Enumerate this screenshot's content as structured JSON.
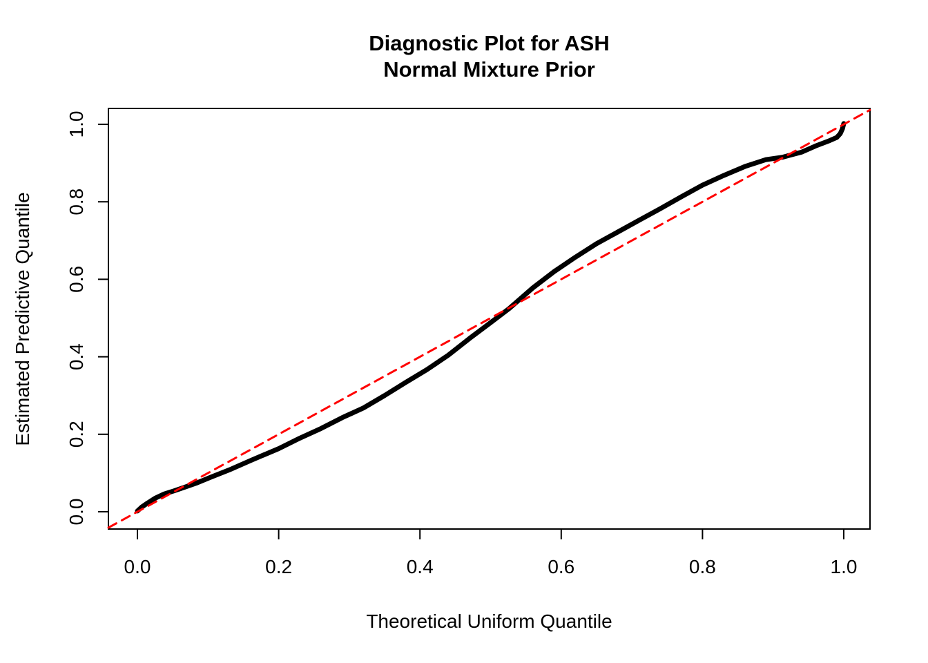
{
  "title": {
    "line1": "Diagnostic Plot for ASH",
    "line2": "Normal Mixture Prior"
  },
  "chart_data": {
    "type": "line",
    "title": "Diagnostic Plot for ASH\nNormal Mixture Prior",
    "xlabel": "Theoretical Uniform Quantile",
    "ylabel": "Estimated Predictive Quantile",
    "xlim": [
      -0.041,
      1.037
    ],
    "ylim": [
      -0.045,
      1.041
    ],
    "grid": false,
    "legend": "none",
    "x_tick_values": [
      0.0,
      0.2,
      0.4,
      0.6,
      0.8,
      1.0
    ],
    "y_tick_values": [
      0.0,
      0.2,
      0.4,
      0.6,
      0.8,
      1.0
    ],
    "x_tick_labels": [
      "0.0",
      "0.2",
      "0.4",
      "0.6",
      "0.8",
      "1.0"
    ],
    "y_tick_labels": [
      "0.0",
      "0.2",
      "0.4",
      "0.6",
      "0.8",
      "1.0"
    ],
    "colors": {
      "curve": "#000000",
      "reference_line": "#FF0000",
      "axis": "#000000",
      "background": "#FFFFFF"
    },
    "series": [
      {
        "name": "estimated-predictive-quantile-curve",
        "type": "line",
        "style": "solid",
        "color": "#000000",
        "stroke_width": 7,
        "points": [
          [
            0.0,
            0.002
          ],
          [
            0.006,
            0.012
          ],
          [
            0.014,
            0.022
          ],
          [
            0.025,
            0.035
          ],
          [
            0.038,
            0.046
          ],
          [
            0.052,
            0.054
          ],
          [
            0.068,
            0.064
          ],
          [
            0.085,
            0.075
          ],
          [
            0.105,
            0.09
          ],
          [
            0.13,
            0.108
          ],
          [
            0.16,
            0.132
          ],
          [
            0.2,
            0.163
          ],
          [
            0.23,
            0.19
          ],
          [
            0.26,
            0.215
          ],
          [
            0.29,
            0.243
          ],
          [
            0.32,
            0.268
          ],
          [
            0.35,
            0.3
          ],
          [
            0.38,
            0.334
          ],
          [
            0.41,
            0.367
          ],
          [
            0.44,
            0.404
          ],
          [
            0.47,
            0.447
          ],
          [
            0.5,
            0.488
          ],
          [
            0.526,
            0.524
          ],
          [
            0.56,
            0.578
          ],
          [
            0.59,
            0.62
          ],
          [
            0.62,
            0.657
          ],
          [
            0.65,
            0.692
          ],
          [
            0.68,
            0.722
          ],
          [
            0.71,
            0.752
          ],
          [
            0.74,
            0.782
          ],
          [
            0.77,
            0.813
          ],
          [
            0.8,
            0.843
          ],
          [
            0.83,
            0.868
          ],
          [
            0.86,
            0.891
          ],
          [
            0.89,
            0.909
          ],
          [
            0.913,
            0.915
          ],
          [
            0.94,
            0.928
          ],
          [
            0.96,
            0.944
          ],
          [
            0.98,
            0.958
          ],
          [
            0.99,
            0.966
          ],
          [
            0.995,
            0.976
          ],
          [
            0.998,
            0.988
          ],
          [
            1.0,
            1.002
          ]
        ]
      },
      {
        "name": "reference-diagonal-y-equals-x",
        "type": "line",
        "style": "dashed",
        "color": "#FF0000",
        "stroke_width": 3,
        "points": [
          [
            -0.041,
            -0.041
          ],
          [
            1.037,
            1.037
          ]
        ]
      }
    ]
  }
}
